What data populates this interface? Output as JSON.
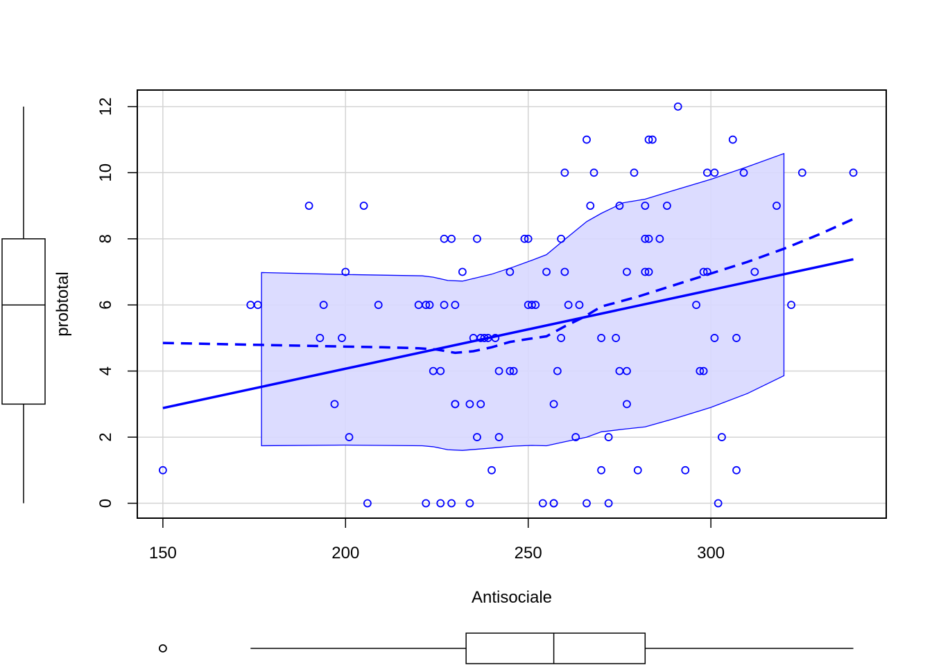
{
  "chart_data": {
    "type": "scatter",
    "title": "",
    "xlabel": "Antisociale",
    "ylabel": "probtotal",
    "xlim": [
      143,
      348
    ],
    "ylim": [
      -0.45,
      12.5
    ],
    "xticks": [
      150,
      200,
      250,
      300
    ],
    "yticks": [
      0,
      2,
      4,
      6,
      8,
      10,
      12
    ],
    "grid": true,
    "colors": {
      "points": "#0000ff",
      "band_fill": "#d8d8ff",
      "lines": "#0000ff",
      "grid": "#d3d3d3",
      "axes": "#000000"
    },
    "points": [
      {
        "x": 150,
        "y": 1
      },
      {
        "x": 174,
        "y": 6
      },
      {
        "x": 176,
        "y": 6
      },
      {
        "x": 190,
        "y": 9
      },
      {
        "x": 193,
        "y": 5
      },
      {
        "x": 194,
        "y": 6
      },
      {
        "x": 197,
        "y": 3
      },
      {
        "x": 199,
        "y": 5
      },
      {
        "x": 200,
        "y": 7
      },
      {
        "x": 201,
        "y": 2
      },
      {
        "x": 205,
        "y": 9
      },
      {
        "x": 206,
        "y": 0
      },
      {
        "x": 209,
        "y": 6
      },
      {
        "x": 220,
        "y": 6
      },
      {
        "x": 222,
        "y": 6
      },
      {
        "x": 222,
        "y": 0
      },
      {
        "x": 223,
        "y": 6
      },
      {
        "x": 224,
        "y": 4
      },
      {
        "x": 226,
        "y": 4
      },
      {
        "x": 226,
        "y": 0
      },
      {
        "x": 227,
        "y": 8
      },
      {
        "x": 227,
        "y": 6
      },
      {
        "x": 229,
        "y": 8
      },
      {
        "x": 229,
        "y": 0
      },
      {
        "x": 230,
        "y": 6
      },
      {
        "x": 230,
        "y": 3
      },
      {
        "x": 230,
        "y": 3
      },
      {
        "x": 232,
        "y": 7
      },
      {
        "x": 234,
        "y": 3
      },
      {
        "x": 234,
        "y": 0
      },
      {
        "x": 235,
        "y": 5
      },
      {
        "x": 236,
        "y": 8
      },
      {
        "x": 236,
        "y": 2
      },
      {
        "x": 237,
        "y": 5
      },
      {
        "x": 237,
        "y": 3
      },
      {
        "x": 238,
        "y": 5
      },
      {
        "x": 239,
        "y": 5
      },
      {
        "x": 240,
        "y": 1
      },
      {
        "x": 241,
        "y": 5
      },
      {
        "x": 242,
        "y": 4
      },
      {
        "x": 242,
        "y": 2
      },
      {
        "x": 245,
        "y": 7
      },
      {
        "x": 245,
        "y": 4
      },
      {
        "x": 246,
        "y": 4
      },
      {
        "x": 249,
        "y": 8
      },
      {
        "x": 250,
        "y": 8
      },
      {
        "x": 250,
        "y": 6
      },
      {
        "x": 251,
        "y": 6
      },
      {
        "x": 252,
        "y": 6
      },
      {
        "x": 254,
        "y": 0
      },
      {
        "x": 255,
        "y": 7
      },
      {
        "x": 257,
        "y": 3
      },
      {
        "x": 257,
        "y": 0
      },
      {
        "x": 257,
        "y": 0
      },
      {
        "x": 258,
        "y": 4
      },
      {
        "x": 259,
        "y": 8
      },
      {
        "x": 259,
        "y": 5
      },
      {
        "x": 260,
        "y": 10
      },
      {
        "x": 260,
        "y": 7
      },
      {
        "x": 261,
        "y": 6
      },
      {
        "x": 263,
        "y": 2
      },
      {
        "x": 264,
        "y": 6
      },
      {
        "x": 266,
        "y": 11
      },
      {
        "x": 266,
        "y": 0
      },
      {
        "x": 267,
        "y": 9
      },
      {
        "x": 268,
        "y": 10
      },
      {
        "x": 270,
        "y": 5
      },
      {
        "x": 270,
        "y": 1
      },
      {
        "x": 272,
        "y": 2
      },
      {
        "x": 272,
        "y": 0
      },
      {
        "x": 274,
        "y": 5
      },
      {
        "x": 275,
        "y": 9
      },
      {
        "x": 275,
        "y": 4
      },
      {
        "x": 277,
        "y": 7
      },
      {
        "x": 277,
        "y": 4
      },
      {
        "x": 277,
        "y": 3
      },
      {
        "x": 279,
        "y": 10
      },
      {
        "x": 280,
        "y": 1
      },
      {
        "x": 282,
        "y": 9
      },
      {
        "x": 282,
        "y": 8
      },
      {
        "x": 282,
        "y": 7
      },
      {
        "x": 283,
        "y": 11
      },
      {
        "x": 283,
        "y": 8
      },
      {
        "x": 283,
        "y": 7
      },
      {
        "x": 284,
        "y": 11
      },
      {
        "x": 286,
        "y": 8
      },
      {
        "x": 288,
        "y": 9
      },
      {
        "x": 291,
        "y": 12
      },
      {
        "x": 293,
        "y": 1
      },
      {
        "x": 296,
        "y": 6
      },
      {
        "x": 297,
        "y": 4
      },
      {
        "x": 298,
        "y": 7
      },
      {
        "x": 298,
        "y": 4
      },
      {
        "x": 299,
        "y": 10
      },
      {
        "x": 299,
        "y": 7
      },
      {
        "x": 301,
        "y": 10
      },
      {
        "x": 301,
        "y": 5
      },
      {
        "x": 302,
        "y": 0
      },
      {
        "x": 303,
        "y": 2
      },
      {
        "x": 306,
        "y": 11
      },
      {
        "x": 307,
        "y": 5
      },
      {
        "x": 307,
        "y": 1
      },
      {
        "x": 309,
        "y": 10
      },
      {
        "x": 312,
        "y": 7
      },
      {
        "x": 318,
        "y": 9
      },
      {
        "x": 322,
        "y": 6
      },
      {
        "x": 325,
        "y": 10
      },
      {
        "x": 339,
        "y": 10
      }
    ],
    "regression_line": {
      "x": [
        150,
        339
      ],
      "y": [
        2.88,
        7.38
      ]
    },
    "smooth_line": {
      "x": [
        150,
        177,
        200,
        210,
        220,
        225,
        230,
        235,
        240,
        245,
        250,
        255,
        260,
        265,
        270,
        280,
        290,
        300,
        310,
        320,
        330,
        339
      ],
      "y": [
        4.85,
        4.79,
        4.74,
        4.72,
        4.69,
        4.65,
        4.55,
        4.6,
        4.72,
        4.88,
        4.97,
        5.05,
        5.35,
        5.62,
        5.95,
        6.25,
        6.6,
        6.95,
        7.3,
        7.7,
        8.15,
        8.6
      ]
    },
    "band": {
      "x": [
        177,
        200,
        221,
        224,
        228,
        232,
        240,
        246,
        251,
        255,
        260,
        266,
        270,
        276,
        282,
        290,
        300,
        310,
        320
      ],
      "upper": [
        6.98,
        6.92,
        6.88,
        6.84,
        6.74,
        6.72,
        6.93,
        7.15,
        7.35,
        7.52,
        7.98,
        8.52,
        8.77,
        9.09,
        9.2,
        9.47,
        9.8,
        10.18,
        10.58
      ],
      "lower": [
        1.74,
        1.76,
        1.74,
        1.71,
        1.62,
        1.6,
        1.67,
        1.73,
        1.75,
        1.74,
        1.86,
        2.0,
        2.16,
        2.24,
        2.31,
        2.56,
        2.9,
        3.32,
        3.86
      ]
    },
    "x_boxplot": {
      "min": 174,
      "q1": 233,
      "median": 257,
      "q3": 282,
      "max": 339,
      "outliers": [
        150
      ]
    },
    "y_boxplot": {
      "min": 0,
      "q1": 3,
      "median": 6,
      "q3": 8,
      "max": 12,
      "outliers": []
    }
  }
}
